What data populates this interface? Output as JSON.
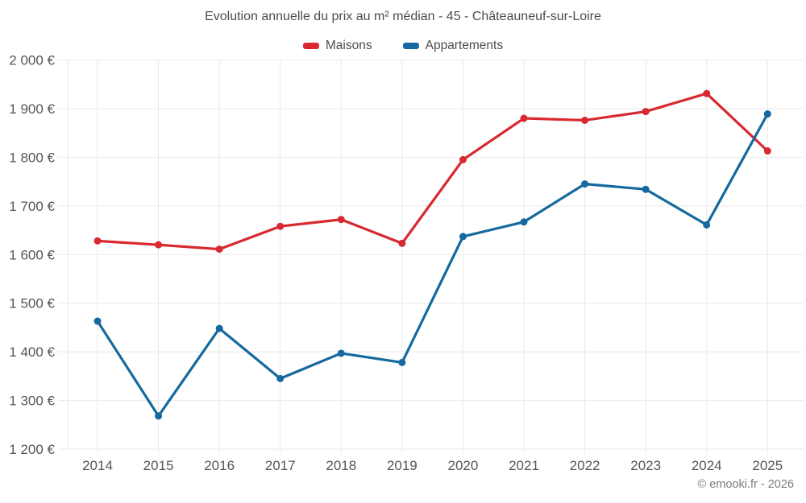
{
  "chart_data": {
    "type": "line",
    "title": "Evolution annuelle du prix au m² médian - 45 - Châteauneuf-sur-Loire",
    "x": [
      2014,
      2015,
      2016,
      2017,
      2018,
      2019,
      2020,
      2021,
      2022,
      2023,
      2024,
      2025
    ],
    "x_tick_labels": [
      "2014",
      "2015",
      "2016",
      "2017",
      "2018",
      "2019",
      "2020",
      "2021",
      "2022",
      "2023",
      "2024",
      "2025"
    ],
    "series": [
      {
        "name": "Maisons",
        "color": "#d7292f",
        "values": [
          1628,
          1620,
          1611,
          1658,
          1672,
          1623,
          1795,
          1880,
          1876,
          1894,
          1931,
          1813
        ]
      },
      {
        "name": "Appartements",
        "color": "#15699f",
        "values": [
          1463,
          1268,
          1448,
          1345,
          1397,
          1378,
          1637,
          1667,
          1745,
          1734,
          1661,
          1889
        ]
      }
    ],
    "ylim": [
      1200,
      2000
    ],
    "y_ticks": [
      1200,
      1300,
      1400,
      1500,
      1600,
      1700,
      1800,
      1900,
      2000
    ],
    "y_tick_labels": [
      "1 200 €",
      "1 300 €",
      "1 400 €",
      "1 500 €",
      "1 600 €",
      "1 700 €",
      "1 800 €",
      "1 900 €",
      "2 000 €"
    ],
    "xlabel": "",
    "ylabel": "",
    "grid": true,
    "legend_position": "top",
    "grid_color": "#e9e9e9",
    "axis_label_color": "#565656",
    "title_color": "#4c4c4c"
  },
  "watermark": {
    "text": "© emooki.fr - 2026"
  }
}
